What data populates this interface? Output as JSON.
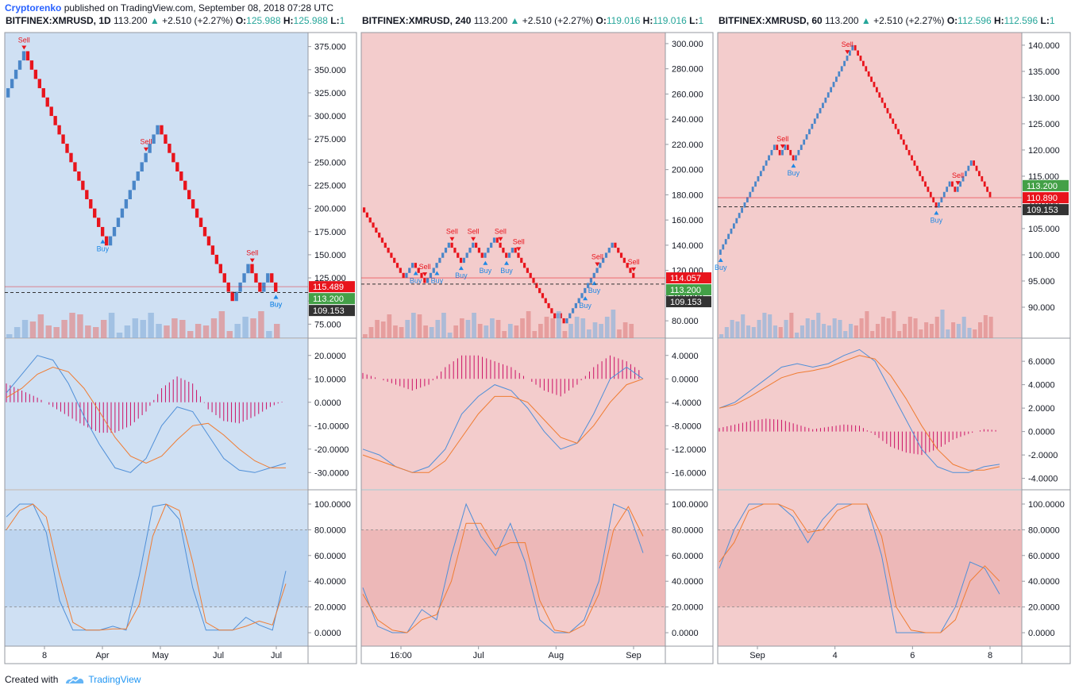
{
  "publisher": {
    "author": "Cryptorenko",
    "text": "published on TradingView.com, September 08, 2018 07:28 UTC"
  },
  "footer": {
    "created_with": "Created with",
    "brand": "TradingView"
  },
  "colors": {
    "up": "#4a86c8",
    "down": "#e8141c",
    "price_label": "#e8141c",
    "close_label": "#43a047",
    "ref_label": "#333333",
    "macd_line": "#4f8fd8",
    "signal_line": "#f07c32",
    "histogram": "#cc1166",
    "buy": "#1e88e5",
    "sell": "#e8141c"
  },
  "chart_data": [
    {
      "type": "renko",
      "symbol": "BITFINEX:XMRUSD",
      "interval": "1D",
      "last": "113.200",
      "change": "+2.510 (+2.27%)",
      "open": "125.988",
      "high": "125.988",
      "low": "1",
      "background": "#cfe0f3",
      "y_axis_ticks": [
        "375.000",
        "350.000",
        "325.000",
        "300.000",
        "275.000",
        "250.000",
        "225.000",
        "200.000",
        "175.000",
        "150.000",
        "125.000",
        "100.000",
        "75.000"
      ],
      "ylim": [
        65,
        385
      ],
      "x_axis_ticks": [
        "8",
        "Apr",
        "May",
        "Jul",
        "Jul"
      ],
      "price_labels": [
        {
          "value": "115.489",
          "price": 115.489,
          "role": "price"
        },
        {
          "value": "113.200",
          "price": 113.2,
          "role": "close"
        },
        {
          "value": "109.153",
          "price": 109.153,
          "role": "ref"
        }
      ],
      "renko_path": [
        320,
        370,
        165,
        285,
        165,
        145,
        105,
        135,
        110,
        125,
        115
      ],
      "brick": 10,
      "signals": [
        {
          "label": "Sell",
          "kind": "sell",
          "brick": 4
        },
        {
          "label": "Buy",
          "kind": "buy",
          "brick": 24
        },
        {
          "label": "Sell",
          "kind": "sell",
          "brick": 35
        },
        {
          "label": "Sell",
          "kind": "sell",
          "brick": 62
        },
        {
          "label": "Buy",
          "kind": "buy",
          "brick": 71
        },
        {
          "label": "Buy",
          "kind": "buy",
          "brick": 77
        }
      ],
      "macd": {
        "ticks": [
          "20.0000",
          "10.0000",
          "0.0000",
          "-10.0000",
          "-20.0000",
          "-30.0000"
        ],
        "ylim": [
          -35,
          25
        ],
        "macd": [
          4,
          12,
          20,
          18,
          8,
          -6,
          -18,
          -28,
          -30,
          -24,
          -10,
          -2,
          -4,
          -14,
          -24,
          -29,
          -30,
          -28,
          -26
        ],
        "signal": [
          2,
          6,
          12,
          15,
          13,
          6,
          -4,
          -15,
          -23,
          -26,
          -23,
          -16,
          -10,
          -9,
          -14,
          -20,
          -25,
          -28,
          -28
        ],
        "histogram": [
          8,
          5,
          2,
          -2,
          -6,
          -10,
          -13,
          -13,
          -10,
          -4,
          6,
          11,
          8,
          -3,
          -8,
          -9,
          -6,
          -2,
          1
        ]
      },
      "stoch": {
        "ticks": [
          "100.0000",
          "80.0000",
          "60.0000",
          "40.0000",
          "20.0000",
          "0.0000"
        ],
        "ylim": [
          -8,
          108
        ],
        "k": [
          90,
          100,
          100,
          78,
          25,
          2,
          2,
          2,
          5,
          2,
          45,
          98,
          100,
          88,
          35,
          2,
          2,
          2,
          12,
          6,
          2,
          48
        ],
        "d": [
          80,
          95,
          100,
          90,
          45,
          8,
          2,
          2,
          3,
          3,
          22,
          75,
          100,
          95,
          55,
          8,
          2,
          2,
          5,
          9,
          6,
          38
        ],
        "band": [
          20,
          80
        ]
      }
    },
    {
      "type": "renko",
      "symbol": "BITFINEX:XMRUSD",
      "interval": "240",
      "last": "113.200",
      "change": "+2.510 (+2.27%)",
      "open": "119.016",
      "high": "119.016",
      "low": "1",
      "background": "#f3cccc",
      "y_axis_ticks": [
        "300.000",
        "280.000",
        "260.000",
        "240.000",
        "220.000",
        "200.000",
        "180.000",
        "160.000",
        "140.000",
        "120.000",
        "100.000",
        "80.000"
      ],
      "ylim": [
        70,
        305
      ],
      "x_axis_ticks": [
        "16:00",
        "Jul",
        "Aug",
        "Sep"
      ],
      "price_labels": [
        {
          "value": "114.057",
          "price": 114.057,
          "role": "price"
        },
        {
          "value": "113.200",
          "price": 113.2,
          "role": "close"
        },
        {
          "value": "109.153",
          "price": 109.153,
          "role": "ref"
        }
      ],
      "renko_path": [
        170,
        116,
        126,
        112,
        140,
        126,
        140,
        132,
        144,
        130,
        136,
        84,
        86,
        80,
        140,
        114
      ],
      "brick": 4,
      "signals": [
        {
          "label": "Sell",
          "kind": "sell",
          "brick": 20
        },
        {
          "label": "Buy",
          "kind": "buy",
          "brick": 17
        },
        {
          "label": "Buy",
          "kind": "buy",
          "brick": 24
        },
        {
          "label": "Sell",
          "kind": "sell",
          "brick": 29
        },
        {
          "label": "Buy",
          "kind": "buy",
          "brick": 32
        },
        {
          "label": "Sell",
          "kind": "sell",
          "brick": 36
        },
        {
          "label": "Buy",
          "kind": "buy",
          "brick": 40
        },
        {
          "label": "Sell",
          "kind": "sell",
          "brick": 45
        },
        {
          "label": "Buy",
          "kind": "buy",
          "brick": 47
        },
        {
          "label": "Sell",
          "kind": "sell",
          "brick": 51
        },
        {
          "label": "Buy",
          "kind": "buy",
          "brick": 73
        },
        {
          "label": "Buy",
          "kind": "buy",
          "brick": 76
        },
        {
          "label": "Sell",
          "kind": "sell",
          "brick": 77
        },
        {
          "label": "Sell",
          "kind": "sell",
          "brick": 93
        }
      ],
      "macd": {
        "ticks": [
          "4.0000",
          "0.0000",
          "-4.0000",
          "-8.0000",
          "-12.0000",
          "-16.0000"
        ],
        "ylim": [
          -18,
          6
        ],
        "macd": [
          -12,
          -13,
          -15,
          -16,
          -15,
          -12,
          -6,
          -3,
          -1,
          -2,
          -5,
          -9,
          -12,
          -11,
          -6,
          0,
          2,
          0
        ],
        "signal": [
          -13,
          -14,
          -15,
          -16,
          -16,
          -14,
          -10,
          -6,
          -3,
          -3,
          -4,
          -7,
          -10,
          -11,
          -8,
          -4,
          -1,
          0
        ],
        "histogram": [
          1,
          0,
          -1,
          -2,
          -1,
          2,
          4,
          4,
          3,
          2,
          0,
          -2,
          -3,
          -1,
          2,
          4,
          3,
          1
        ]
      },
      "stoch": {
        "ticks": [
          "100.0000",
          "80.0000",
          "60.0000",
          "40.0000",
          "20.0000",
          "0.0000"
        ],
        "ylim": [
          -8,
          108
        ],
        "k": [
          35,
          5,
          0,
          0,
          18,
          10,
          60,
          100,
          75,
          60,
          85,
          55,
          10,
          0,
          0,
          10,
          40,
          100,
          95,
          62
        ],
        "d": [
          30,
          10,
          2,
          0,
          10,
          14,
          40,
          85,
          85,
          65,
          70,
          70,
          25,
          2,
          0,
          6,
          30,
          80,
          98,
          75
        ],
        "band": [
          20,
          80
        ]
      }
    },
    {
      "type": "renko",
      "symbol": "BITFINEX:XMRUSD",
      "interval": "60",
      "last": "113.200",
      "change": "+2.510 (+2.27%)",
      "open": "112.596",
      "high": "112.596",
      "low": "1",
      "background": "#f3cccc",
      "y_axis_ticks": [
        "140.000",
        "135.000",
        "130.000",
        "125.000",
        "120.000",
        "115.000",
        "110.000",
        "105.000",
        "100.000",
        "95.000",
        "90.000"
      ],
      "ylim": [
        85,
        141.5
      ],
      "x_axis_ticks": [
        "Sep",
        "4",
        "6",
        "8"
      ],
      "price_labels": [
        {
          "value": "113.200",
          "price": 113.2,
          "role": "close"
        },
        {
          "value": "110.890",
          "price": 110.89,
          "role": "price"
        },
        {
          "value": "109.153",
          "price": 109.153,
          "role": "ref"
        }
      ],
      "renko_path": [
        100,
        121,
        119,
        121,
        118,
        121,
        140,
        109,
        114,
        112,
        118,
        111
      ],
      "brick": 1,
      "signals": [
        {
          "label": "Buy",
          "kind": "buy",
          "brick": 0
        },
        {
          "label": "Sell",
          "kind": "sell",
          "brick": 23
        },
        {
          "label": "Buy",
          "kind": "buy",
          "brick": 27
        },
        {
          "label": "Sell",
          "kind": "sell",
          "brick": 47
        },
        {
          "label": "Buy",
          "kind": "buy",
          "brick": 80
        },
        {
          "label": "Sell",
          "kind": "sell",
          "brick": 88
        }
      ],
      "macd": {
        "ticks": [
          "6.0000",
          "4.0000",
          "2.0000",
          "0.0000",
          "-2.0000",
          "-4.0000"
        ],
        "ylim": [
          -4.5,
          7.5
        ],
        "macd": [
          2,
          2.5,
          3.5,
          4.5,
          5.5,
          5.8,
          5.5,
          5.8,
          6.5,
          7,
          6,
          3.5,
          1,
          -1.5,
          -3,
          -3.5,
          -3.5,
          -3,
          -2.8
        ],
        "signal": [
          2,
          2.3,
          3,
          3.8,
          4.6,
          5,
          5.2,
          5.5,
          6,
          6.5,
          6.2,
          4.8,
          2.8,
          0.5,
          -1.5,
          -2.8,
          -3.3,
          -3.3,
          -3
        ],
        "histogram": [
          0.3,
          0.6,
          0.9,
          1.1,
          1.0,
          0.6,
          0.2,
          0.4,
          0.6,
          0.5,
          -0.3,
          -1.3,
          -1.8,
          -2,
          -1.5,
          -0.7,
          -0.2,
          0.2,
          0.1
        ]
      },
      "stoch": {
        "ticks": [
          "100.0000",
          "80.0000",
          "60.0000",
          "40.0000",
          "20.0000",
          "0.0000"
        ],
        "ylim": [
          -8,
          108
        ],
        "k": [
          50,
          80,
          100,
          100,
          100,
          90,
          70,
          88,
          100,
          100,
          100,
          60,
          0,
          0,
          0,
          0,
          20,
          55,
          50,
          30
        ],
        "d": [
          55,
          70,
          95,
          100,
          100,
          95,
          78,
          80,
          95,
          100,
          100,
          75,
          20,
          2,
          0,
          0,
          10,
          40,
          52,
          40
        ],
        "band": [
          20,
          80
        ]
      }
    }
  ]
}
